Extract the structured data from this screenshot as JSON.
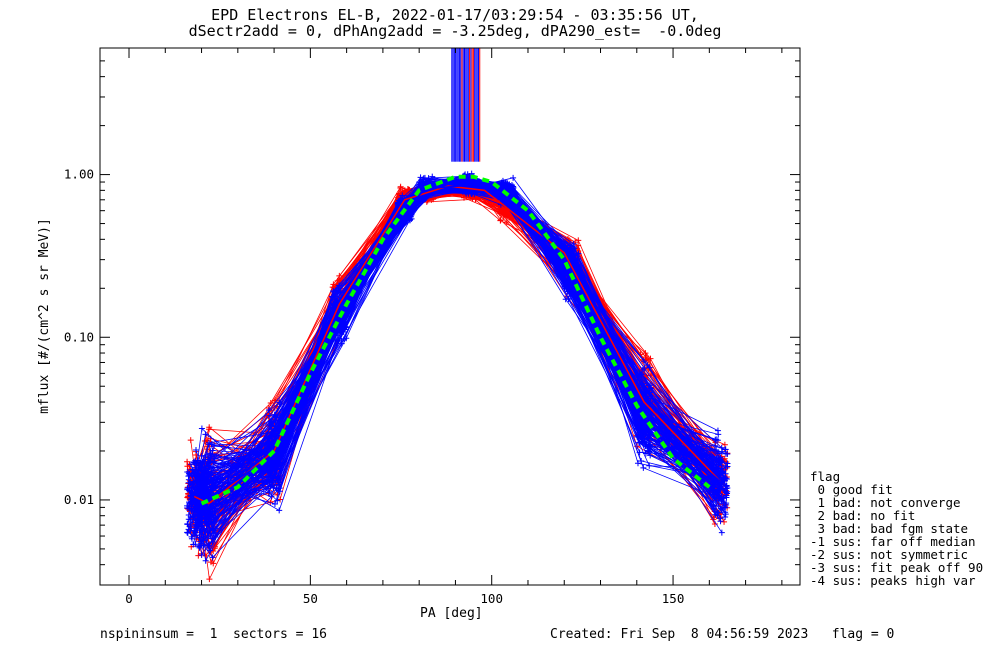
{
  "chart_data": {
    "type": "line",
    "title_line1": "EPD Electrons EL-B, 2022-01-17/03:29:54 - 03:35:56 UT,",
    "title_line2": "dSectr2add = 0, dPhAng2add = -3.25deg, dPA290_est=  -0.0deg",
    "xlabel": "PA [deg]",
    "ylabel": "mflux [#/(cm^2 s sr MeV)]",
    "xlim": [
      -8,
      185
    ],
    "ylim": [
      0.003,
      6
    ],
    "yscale": "log",
    "x_ticks": [
      0,
      50,
      100,
      150
    ],
    "y_ticks": [
      {
        "value": 0.01,
        "label": "0.01"
      },
      {
        "value": 0.1,
        "label": "0.10"
      },
      {
        "value": 1.0,
        "label": "1.00"
      }
    ],
    "series": [
      {
        "color": "#ff0000",
        "x": [
          18,
          22,
          40,
          58,
          76,
          88,
          98,
          120,
          142,
          163
        ],
        "y": [
          0.0105,
          0.0095,
          0.02,
          0.16,
          0.7,
          0.85,
          0.8,
          0.33,
          0.04,
          0.013
        ]
      },
      {
        "color": "#0000ff",
        "x": [
          21,
          40,
          58,
          76,
          82,
          94,
          104,
          122,
          142,
          163
        ],
        "y": [
          0.0098,
          0.019,
          0.14,
          0.62,
          0.82,
          0.86,
          0.78,
          0.26,
          0.033,
          0.013
        ]
      },
      {
        "color": "#00ff00",
        "x": [
          20,
          30,
          40,
          50,
          60,
          70,
          80,
          90,
          95,
          100,
          110,
          120,
          130,
          140,
          150,
          160
        ],
        "y": [
          0.0095,
          0.012,
          0.02,
          0.06,
          0.16,
          0.4,
          0.8,
          0.97,
          0.97,
          0.9,
          0.6,
          0.3,
          0.1,
          0.038,
          0.018,
          0.012
        ]
      }
    ],
    "spike_x_range": [
      89,
      97
    ]
  },
  "legend": {
    "header": "flag",
    "items": [
      " 0 good fit",
      " 1 bad: not converge",
      " 2 bad: no fit",
      " 3 bad: bad fgm state",
      "-1 sus: far off median",
      "-2 sus: not symmetric",
      "-3 sus: fit peak off 90",
      "-4 sus: peaks high var"
    ]
  },
  "footer": {
    "left": "nspininsum =  1  sectors = 16",
    "right": "Created: Fri Sep  8 04:56:59 2023   flag = 0"
  }
}
